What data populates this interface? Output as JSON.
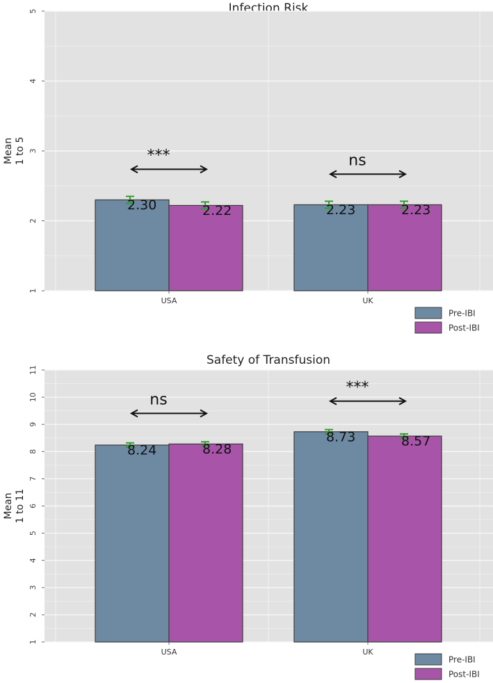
{
  "colors": {
    "pre": "#6e8aa3",
    "post": "#a855a9",
    "panel": "#e2e2e2",
    "grid_major": "#f7f7f7",
    "grid_minor": "#ececec",
    "error_bar": "#2e9d2e",
    "bar_edge": "#3a3a3a"
  },
  "chart_data": [
    {
      "type": "bar",
      "title": "Infection Risk",
      "ylabel": "Mean\n1 to 5",
      "ylabel_lines": [
        "Mean",
        "1 to 5"
      ],
      "ylim": [
        1,
        5
      ],
      "yticks": [
        "1",
        "2",
        "3",
        "4",
        "5"
      ],
      "categories": [
        "USA",
        "UK"
      ],
      "series": [
        {
          "name": "Pre-IBI",
          "values": [
            2.3,
            2.23
          ],
          "labels": [
            "2.30",
            "2.23"
          ]
        },
        {
          "name": "Post-IBI",
          "values": [
            2.22,
            2.23
          ],
          "labels": [
            "2.22",
            "2.23"
          ]
        }
      ],
      "error_halfwidth": 0.05,
      "significance": [
        "***",
        "ns"
      ],
      "legend": [
        "Pre-IBI",
        "Post-IBI"
      ],
      "legend_position": "bottom-right"
    },
    {
      "type": "bar",
      "title": "Safety of Transfusion",
      "ylabel": "Mean\n1 to 11",
      "ylabel_lines": [
        "Mean",
        "1 to 11"
      ],
      "ylim": [
        1,
        11
      ],
      "yticks": [
        "1",
        "2",
        "3",
        "4",
        "5",
        "6",
        "7",
        "8",
        "9",
        "10",
        "11"
      ],
      "categories": [
        "USA",
        "UK"
      ],
      "series": [
        {
          "name": "Pre-IBI",
          "values": [
            8.24,
            8.73
          ],
          "labels": [
            "8.24",
            "8.73"
          ]
        },
        {
          "name": "Post-IBI",
          "values": [
            8.28,
            8.57
          ],
          "labels": [
            "8.28",
            "8.57"
          ]
        }
      ],
      "error_halfwidth": 0.08,
      "significance": [
        "ns",
        "***"
      ],
      "legend": [
        "Pre-IBI",
        "Post-IBI"
      ],
      "legend_position": "bottom-right"
    }
  ]
}
